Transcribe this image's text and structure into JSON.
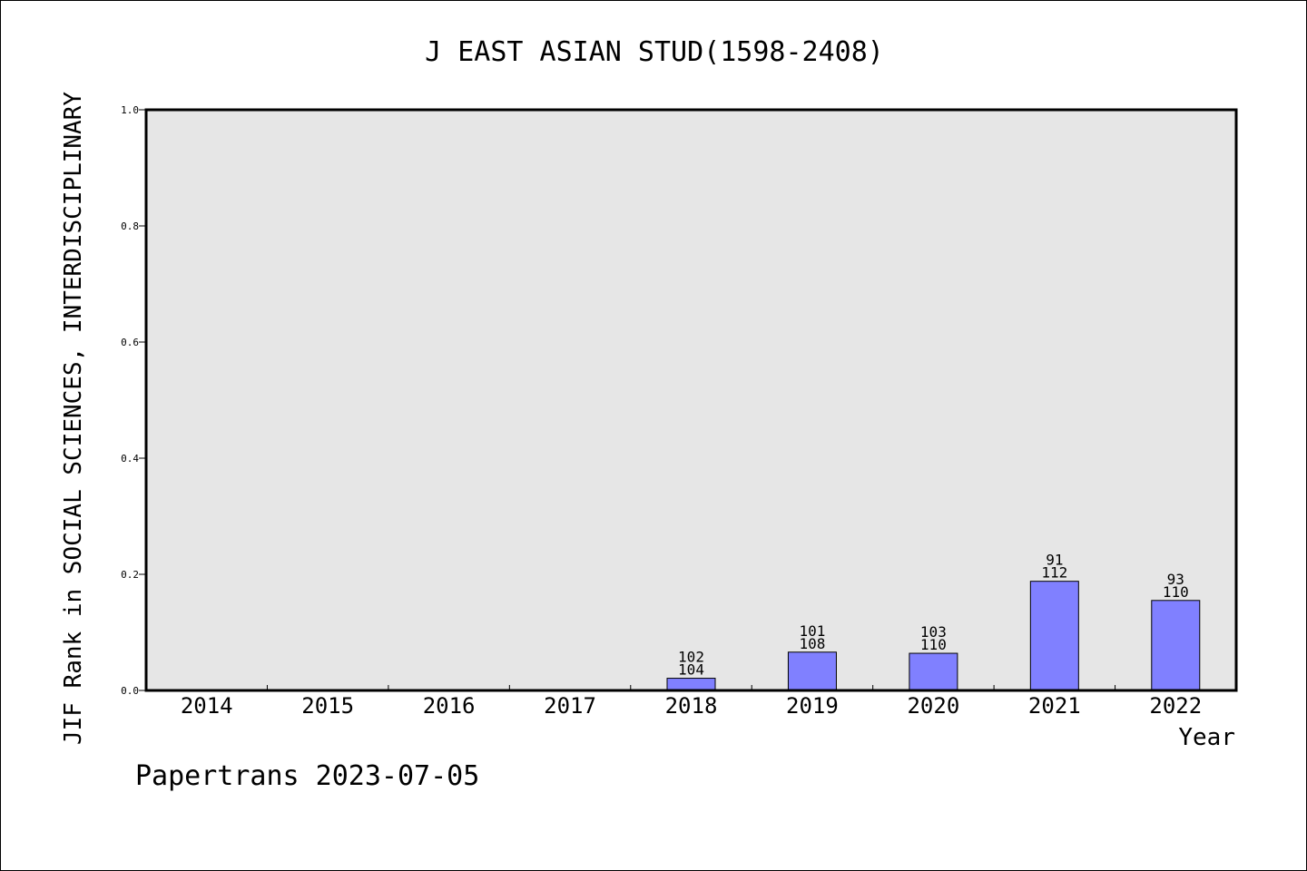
{
  "chart_data": {
    "type": "bar",
    "title": "J EAST ASIAN STUD(1598-2408)",
    "ylabel": "JIF Rank in SOCIAL SCIENCES, INTERDISCIPLINARY",
    "xlabel": "Year",
    "ylim": [
      0,
      1.0
    ],
    "yticks": [
      "0.0",
      "0.2",
      "0.4",
      "0.6",
      "0.8",
      "1.0"
    ],
    "categories": [
      "2014",
      "2015",
      "2016",
      "2017",
      "2018",
      "2019",
      "2020",
      "2021",
      "2022"
    ],
    "values": [
      null,
      null,
      null,
      null,
      0.021,
      0.066,
      0.064,
      0.188,
      0.155
    ],
    "rank_labels": [
      null,
      null,
      null,
      null,
      {
        "rank": "102",
        "total": "104"
      },
      {
        "rank": "101",
        "total": "108"
      },
      {
        "rank": "103",
        "total": "110"
      },
      {
        "rank": "91",
        "total": "112"
      },
      {
        "rank": "93",
        "total": "110"
      }
    ],
    "bar_color": "#8080ff",
    "plot_background": "#e6e6e6",
    "grid": false,
    "legend": "none"
  },
  "footer": "Papertrans 2023-07-05"
}
